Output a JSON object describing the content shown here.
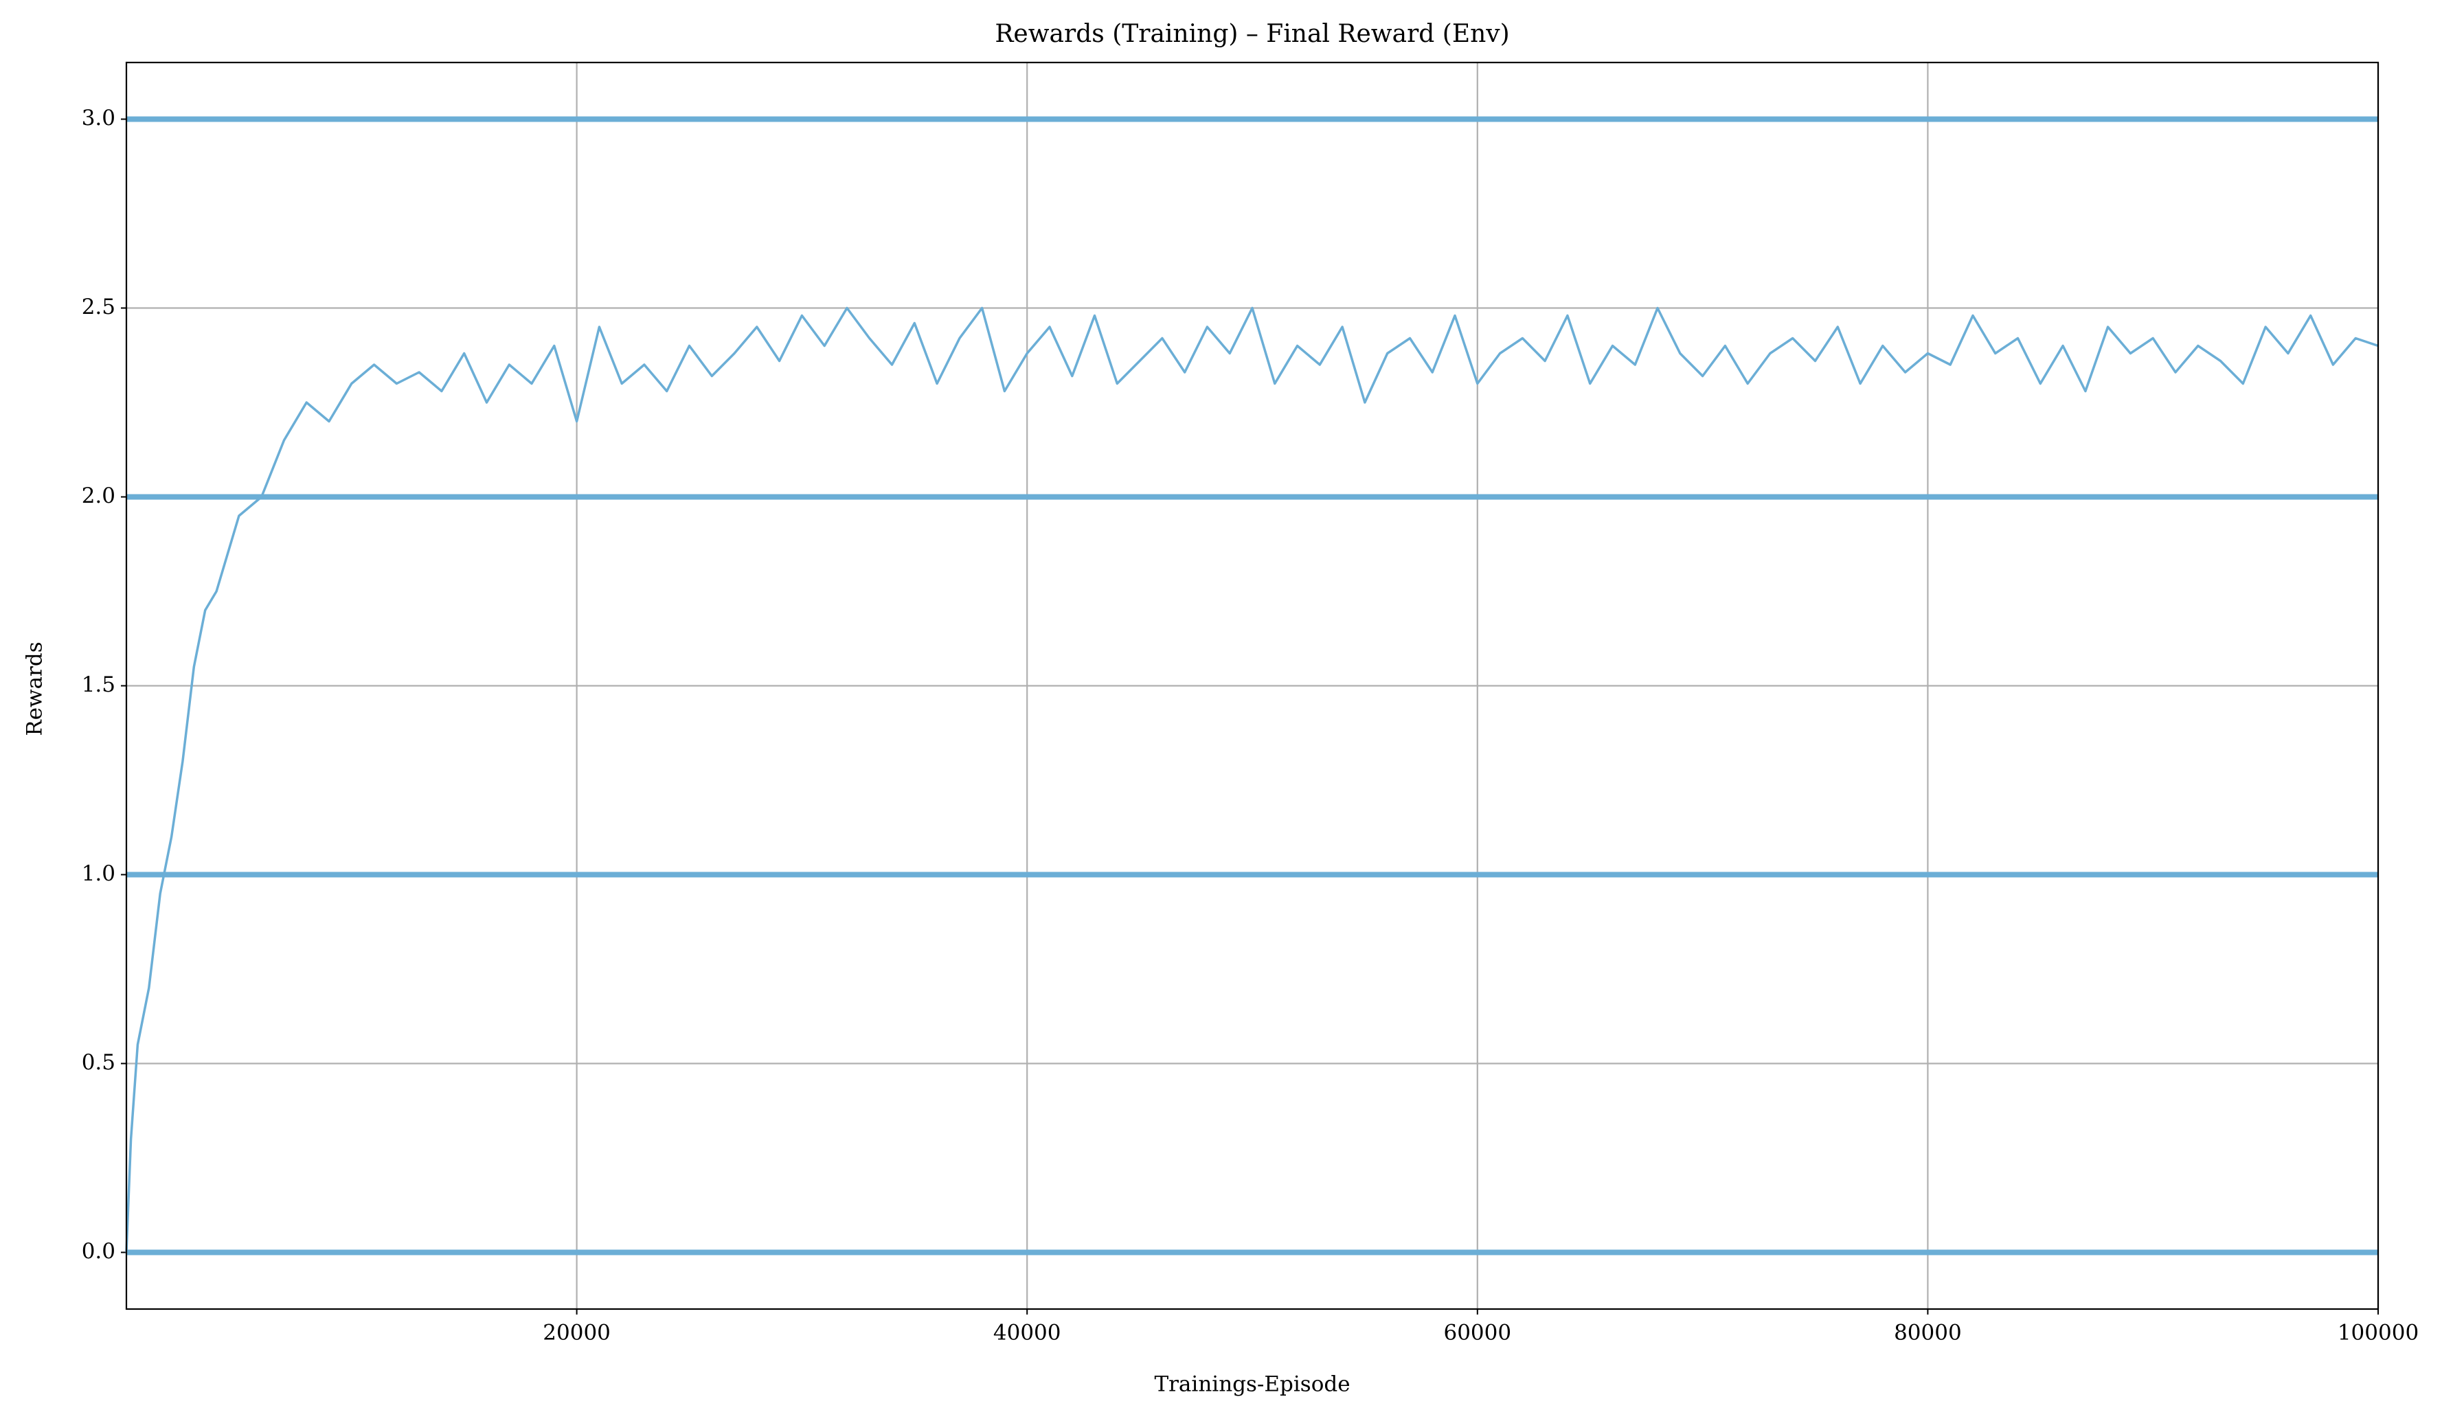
{
  "chart_data": {
    "type": "line",
    "title": "Rewards (Training) – Final Reward (Env)",
    "x_label": "Trainings-Episode",
    "y_label": "Rewards",
    "xlim": [
      0,
      100000
    ],
    "ylim": [
      -0.15,
      3.15
    ],
    "xticks": [
      20000,
      40000,
      60000,
      80000,
      100000
    ],
    "yticks": [
      {
        "value": 0,
        "label": "0.0"
      },
      0.5,
      {
        "value": 1,
        "label": "1.0"
      },
      1.5,
      {
        "value": 2,
        "label": "2.0"
      },
      2.5,
      {
        "value": 3,
        "label": "3.0"
      }
    ],
    "grid": true,
    "series": [
      {
        "color": "#6baed6",
        "width": 8,
        "x": [
          0,
          100000
        ],
        "values": [
          0,
          0
        ]
      },
      {
        "color": "#6baed6",
        "width": 8,
        "x": [
          0,
          100000
        ],
        "values": [
          1,
          1
        ]
      },
      {
        "color": "#6baed6",
        "width": 8,
        "x": [
          0,
          100000
        ],
        "values": [
          2,
          2
        ]
      },
      {
        "color": "#6baed6",
        "width": 8,
        "x": [
          0,
          100000
        ],
        "values": [
          3,
          3
        ]
      },
      {
        "color": "#6baed6",
        "width": 3.5,
        "x": [
          0,
          200,
          500,
          1000,
          1500,
          2000,
          2500,
          3000,
          3500,
          4000,
          5000,
          6000,
          7000,
          8000,
          9000,
          10000,
          11000,
          12000,
          13000,
          14000,
          15000,
          16000,
          17000,
          18000,
          19000,
          20000,
          21000,
          22000,
          23000,
          24000,
          25000,
          26000,
          27000,
          28000,
          29000,
          30000,
          31000,
          32000,
          33000,
          34000,
          35000,
          36000,
          37000,
          38000,
          39000,
          40000,
          41000,
          42000,
          43000,
          44000,
          45000,
          46000,
          47000,
          48000,
          49000,
          50000,
          51000,
          52000,
          53000,
          54000,
          55000,
          56000,
          57000,
          58000,
          59000,
          60000,
          61000,
          62000,
          63000,
          64000,
          65000,
          66000,
          67000,
          68000,
          69000,
          70000,
          71000,
          72000,
          73000,
          74000,
          75000,
          76000,
          77000,
          78000,
          79000,
          80000,
          81000,
          82000,
          83000,
          84000,
          85000,
          86000,
          87000,
          88000,
          89000,
          90000,
          91000,
          92000,
          93000,
          94000,
          95000,
          96000,
          97000,
          98000,
          99000,
          100000
        ],
        "values": [
          0.0,
          0.3,
          0.55,
          0.7,
          0.95,
          1.1,
          1.3,
          1.55,
          1.7,
          1.75,
          1.95,
          2.0,
          2.15,
          2.25,
          2.2,
          2.3,
          2.35,
          2.3,
          2.33,
          2.28,
          2.38,
          2.25,
          2.35,
          2.3,
          2.4,
          2.2,
          2.45,
          2.3,
          2.35,
          2.28,
          2.4,
          2.32,
          2.38,
          2.45,
          2.36,
          2.48,
          2.4,
          2.5,
          2.42,
          2.35,
          2.46,
          2.3,
          2.42,
          2.5,
          2.28,
          2.38,
          2.45,
          2.32,
          2.48,
          2.3,
          2.36,
          2.42,
          2.33,
          2.45,
          2.38,
          2.5,
          2.3,
          2.4,
          2.35,
          2.45,
          2.25,
          2.38,
          2.42,
          2.33,
          2.48,
          2.3,
          2.38,
          2.42,
          2.36,
          2.48,
          2.3,
          2.4,
          2.35,
          2.5,
          2.38,
          2.32,
          2.4,
          2.3,
          2.38,
          2.42,
          2.36,
          2.45,
          2.3,
          2.4,
          2.33,
          2.38,
          2.35,
          2.48,
          2.38,
          2.42,
          2.3,
          2.4,
          2.28,
          2.45,
          2.38,
          2.42,
          2.33,
          2.4,
          2.36,
          2.3,
          2.45,
          2.38,
          2.48,
          2.35,
          2.42,
          2.4
        ]
      }
    ]
  }
}
